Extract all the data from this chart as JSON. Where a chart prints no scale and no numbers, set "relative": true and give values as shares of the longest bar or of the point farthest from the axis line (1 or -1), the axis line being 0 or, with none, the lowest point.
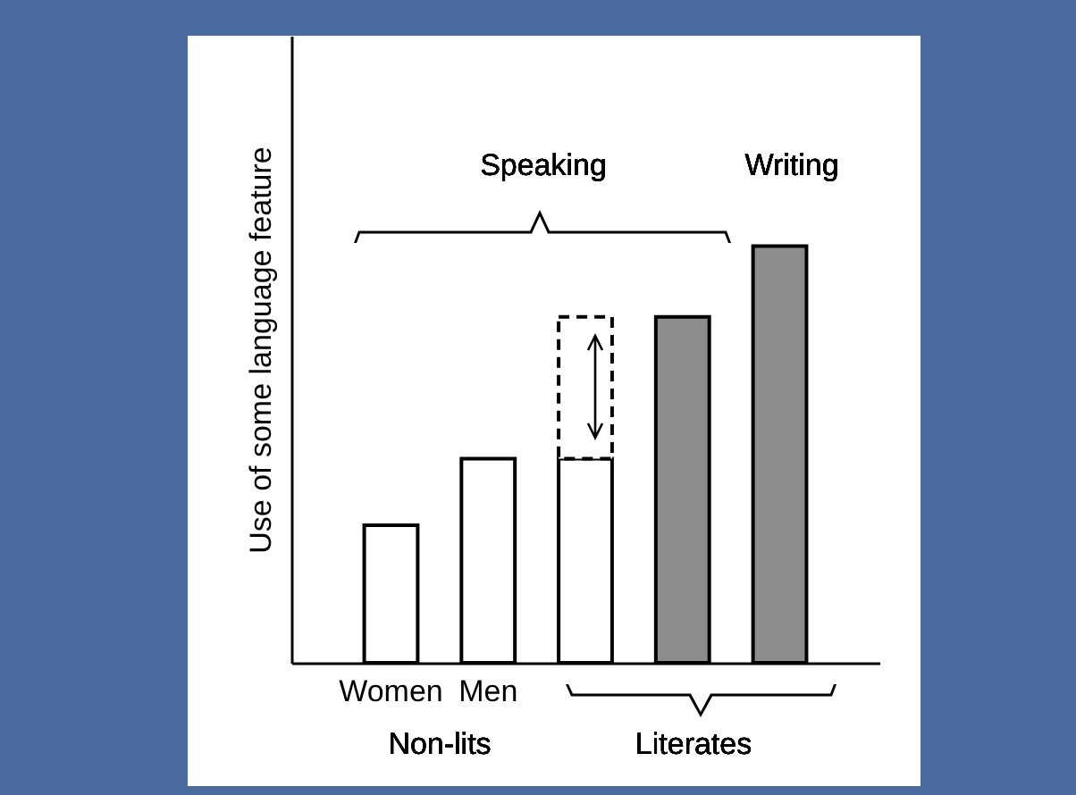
{
  "chart_data": {
    "type": "bar",
    "relative": true,
    "stacked": true,
    "ylabel": "Use of some language feature",
    "categories": [
      "Women",
      "Men",
      null,
      null,
      null
    ],
    "series": [
      {
        "colors": [
          "#ffffff",
          "#ffffff",
          "#ffffff",
          "#8c8c8c",
          "#8c8c8c"
        ],
        "values": [
          0.33,
          0.49,
          0.49,
          0.83,
          1
        ]
      },
      {
        "color": "#ffffff",
        "line_style": "dashed",
        "values": [
          null,
          null,
          0.34,
          null,
          null
        ]
      }
    ],
    "annotations": [
      "Speaking",
      "Writing",
      "Non-lits",
      "Literates"
    ],
    "grid": false
  }
}
